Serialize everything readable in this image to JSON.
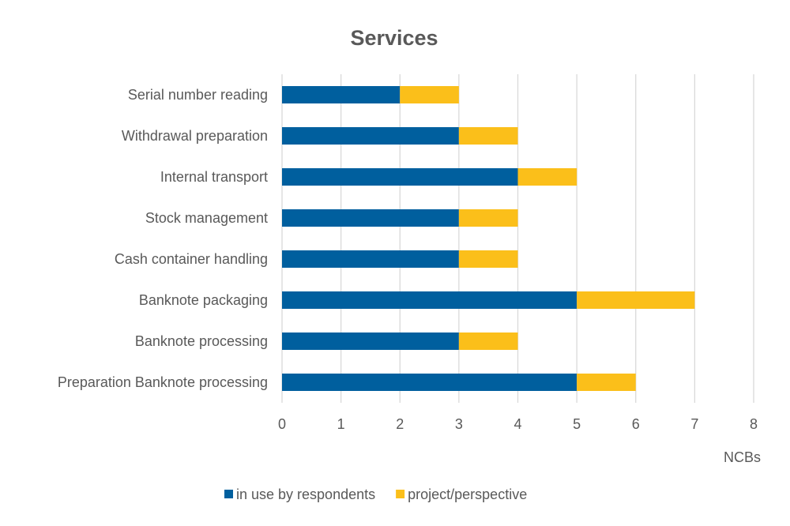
{
  "chart_data": {
    "type": "bar",
    "orientation": "horizontal",
    "stacked": true,
    "title": "Services",
    "xlabel": "NCBs",
    "ylabel": "",
    "xlim": [
      0,
      8
    ],
    "xticks": [
      "0",
      "1",
      "2",
      "3",
      "4",
      "5",
      "6",
      "7",
      "8"
    ],
    "grid": true,
    "legend_position": "bottom",
    "categories": [
      "Serial number reading",
      "Withdrawal preparation",
      "Internal transport",
      "Stock management",
      "Cash container handling",
      "Banknote packaging",
      "Banknote processing",
      "Preparation Banknote processing"
    ],
    "series": [
      {
        "name": "in use by respondents",
        "color": "#005f9e",
        "values": [
          2,
          3,
          4,
          3,
          3,
          5,
          3,
          5
        ]
      },
      {
        "name": "project/perspective",
        "color": "#fbbf1a",
        "values": [
          1,
          1,
          1,
          1,
          1,
          2,
          1,
          1
        ]
      }
    ]
  }
}
